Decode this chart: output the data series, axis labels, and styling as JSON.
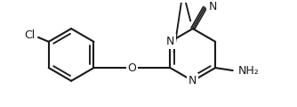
{
  "line_color": "#1a1a1a",
  "bg_color": "#ffffff",
  "line_width": 1.5,
  "font_size": 9,
  "label_Cl": "Cl",
  "label_O": "O",
  "label_N_upper": "N",
  "label_N_lower": "N",
  "label_CN_end": "N",
  "label_NH2": "NH₂"
}
